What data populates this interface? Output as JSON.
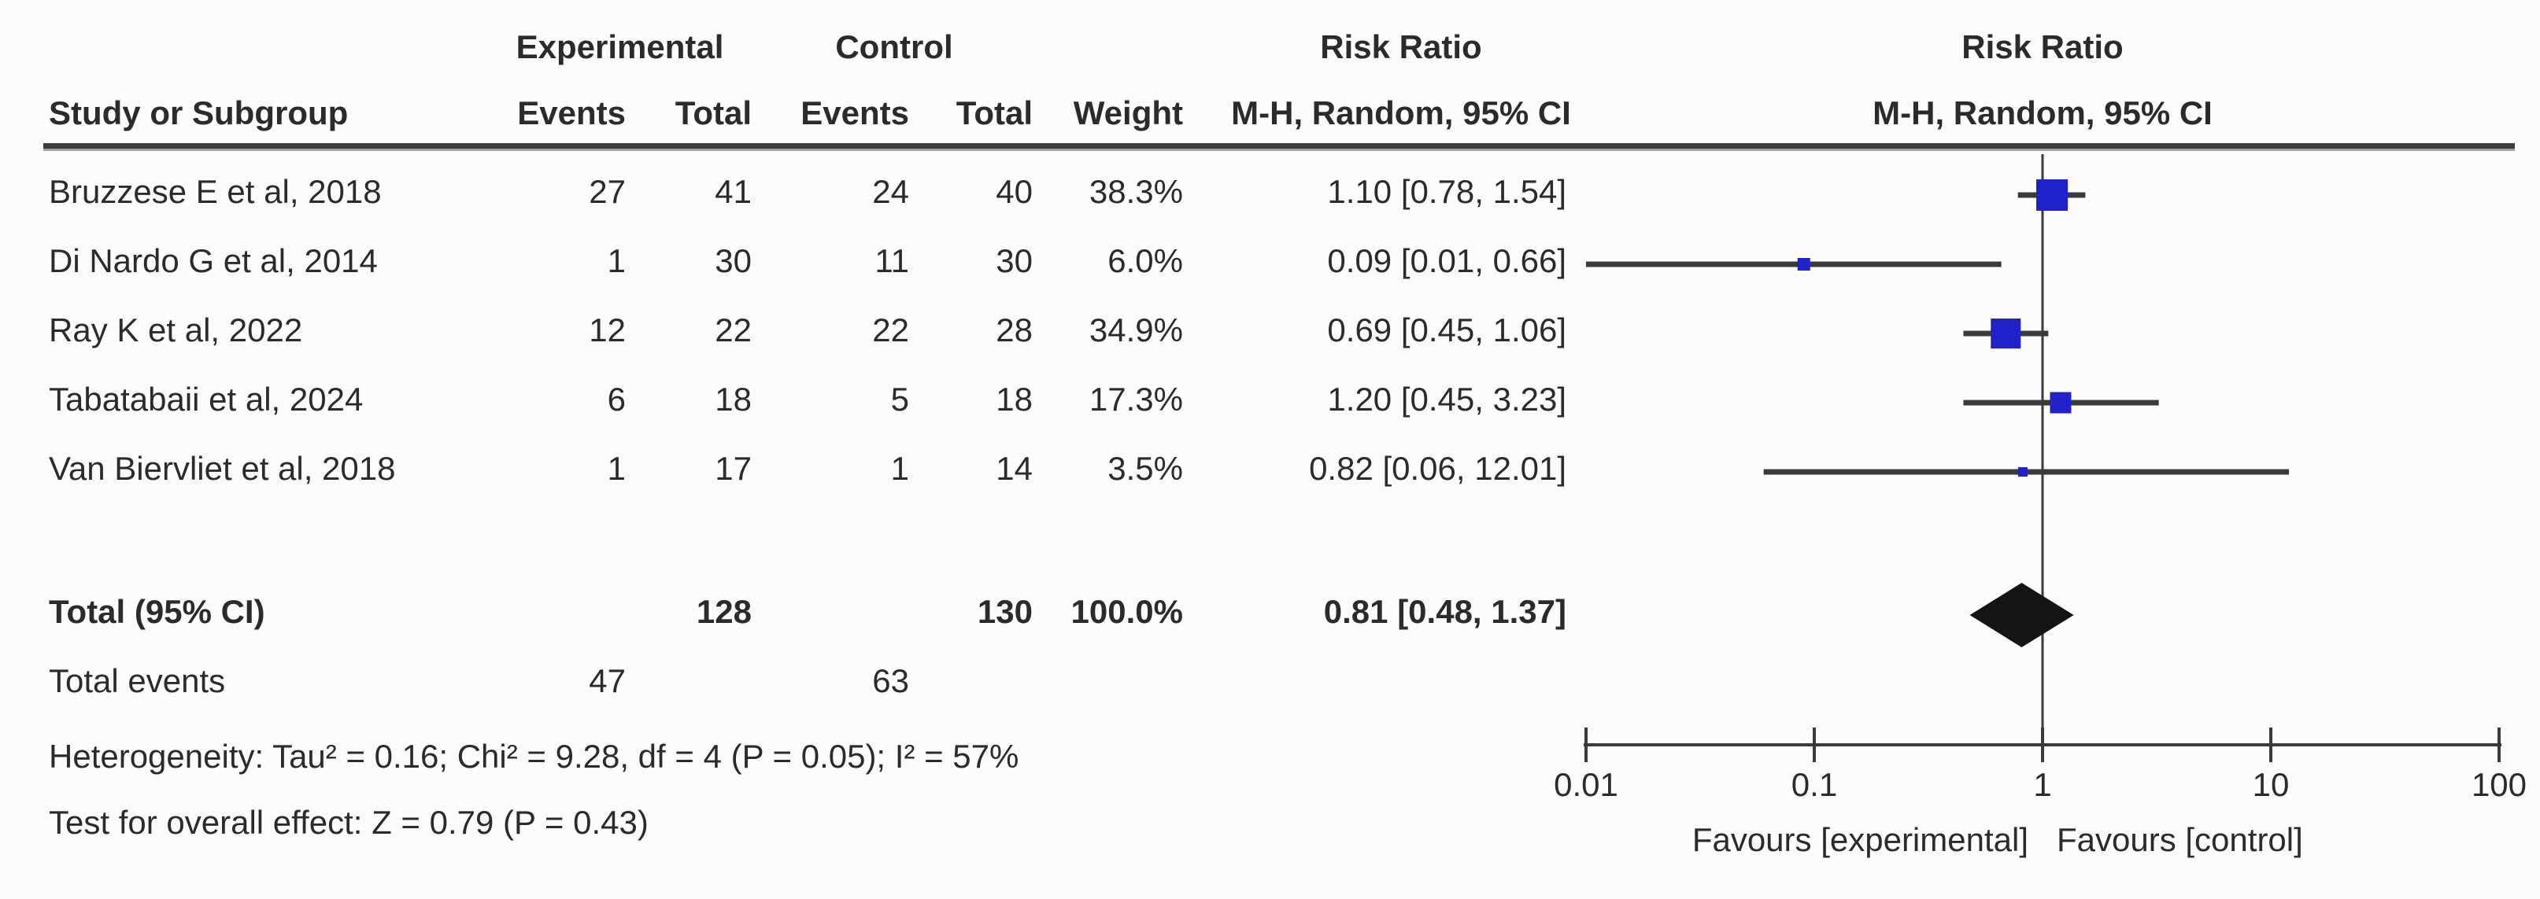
{
  "figure": {
    "kind": "forest-plot",
    "software_style": "RevMan meta-analysis"
  },
  "table": {
    "header": {
      "group1": "Experimental",
      "group2": "Control",
      "col_study": "Study or Subgroup",
      "col_events1": "Events",
      "col_total1": "Total",
      "col_events2": "Events",
      "col_total2": "Total",
      "col_weight": "Weight",
      "effect_title_left": "Risk Ratio",
      "effect_sub_left": "M-H, Random, 95% CI",
      "effect_title_right": "Risk Ratio",
      "effect_sub_right": "M-H, Random, 95% CI"
    },
    "studies": [
      {
        "name": "Bruzzese E et al, 2018",
        "exp_events": "27",
        "exp_total": "41",
        "ctrl_events": "24",
        "ctrl_total": "40",
        "weight": "38.3%",
        "rr_ci": "1.10 [0.78, 1.54]"
      },
      {
        "name": "Di Nardo G et al, 2014",
        "exp_events": "1",
        "exp_total": "30",
        "ctrl_events": "11",
        "ctrl_total": "30",
        "weight": "6.0%",
        "rr_ci": "0.09 [0.01, 0.66]"
      },
      {
        "name": "Ray K et al, 2022",
        "exp_events": "12",
        "exp_total": "22",
        "ctrl_events": "22",
        "ctrl_total": "28",
        "weight": "34.9%",
        "rr_ci": "0.69 [0.45, 1.06]"
      },
      {
        "name": "Tabatabaii et al, 2024",
        "exp_events": "6",
        "exp_total": "18",
        "ctrl_events": "5",
        "ctrl_total": "18",
        "weight": "17.3%",
        "rr_ci": "1.20 [0.45, 3.23]"
      },
      {
        "name": "Van Biervliet et al, 2018",
        "exp_events": "1",
        "exp_total": "17",
        "ctrl_events": "1",
        "ctrl_total": "14",
        "weight": "3.5%",
        "rr_ci": "0.82 [0.06, 12.01]"
      }
    ],
    "totals": {
      "label": "Total (95% CI)",
      "exp_total": "128",
      "ctrl_total": "130",
      "weight": "100.0%",
      "rr_ci": "0.81 [0.48, 1.37]",
      "events_label": "Total events",
      "exp_events": "47",
      "ctrl_events": "63"
    },
    "footer": {
      "heterogeneity": "Heterogeneity: Tau² = 0.16; Chi² = 9.28, df = 4 (P = 0.05); I² = 57%",
      "overall_effect": "Test for overall effect: Z = 0.79 (P = 0.43)"
    }
  },
  "chart_data": {
    "type": "scatter",
    "subtype": "forest",
    "title": "Risk Ratio",
    "subtitle": "M-H, Random, 95% CI",
    "x_scale": "log",
    "xlim": [
      0.01,
      100
    ],
    "x_ticks": [
      "0.01",
      "0.1",
      "1",
      "10",
      "100"
    ],
    "reference_line": 1,
    "points": [
      {
        "label": "Bruzzese E et al, 2018",
        "rr": 1.1,
        "ci_low": 0.78,
        "ci_high": 1.54,
        "weight_pct": 38.3
      },
      {
        "label": "Di Nardo G et al, 2014",
        "rr": 0.09,
        "ci_low": 0.01,
        "ci_high": 0.66,
        "weight_pct": 6.0
      },
      {
        "label": "Ray K et al, 2022",
        "rr": 0.69,
        "ci_low": 0.45,
        "ci_high": 1.06,
        "weight_pct": 34.9
      },
      {
        "label": "Tabatabaii et al, 2024",
        "rr": 1.2,
        "ci_low": 0.45,
        "ci_high": 3.23,
        "weight_pct": 17.3
      },
      {
        "label": "Van Biervliet et al, 2018",
        "rr": 0.82,
        "ci_low": 0.06,
        "ci_high": 12.01,
        "weight_pct": 3.5
      }
    ],
    "total": {
      "label": "Total (95% CI)",
      "rr": 0.81,
      "ci_low": 0.48,
      "ci_high": 1.37,
      "weight_pct": 100.0
    },
    "xlabel_left": "Favours [experimental]",
    "xlabel_right": "Favours [control]",
    "colors": {
      "marker": "#2121CC",
      "diamond": "#141414",
      "line": "#3a3a3a",
      "text": "#2b2b2b"
    },
    "legend_position": "none",
    "grid": false
  }
}
